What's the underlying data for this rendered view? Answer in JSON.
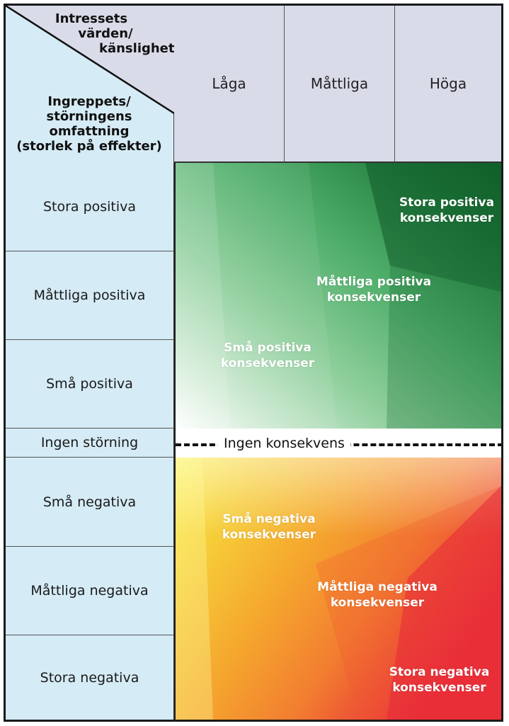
{
  "corner": {
    "top_label": [
      "Intressets",
      "värden/",
      "känslighet"
    ],
    "bottom_label": [
      "Ingreppets/",
      "störningens",
      "omfattning",
      "(storlek på effekter)"
    ]
  },
  "columns": [
    "Låga",
    "Måttliga",
    "Höga"
  ],
  "rows": [
    "Stora positiva",
    "Måttliga positiva",
    "Små positiva",
    "Ingen störning",
    "Små negativa",
    "Måttliga negativa",
    "Stora negativa"
  ],
  "zones": {
    "pos_small": [
      "Små positiva",
      "konsekvenser"
    ],
    "pos_moderate": [
      "Måttliga positiva",
      "konsekvenser"
    ],
    "pos_large": [
      "Stora positiva",
      "konsekvenser"
    ],
    "neutral": "Ingen konsekvens",
    "neg_small": [
      "Små negativa",
      "konsekvenser"
    ],
    "neg_moderate": [
      "Måttliga negativa",
      "konsekvenser"
    ],
    "neg_large": [
      "Stora negativa",
      "konsekvenser"
    ]
  },
  "colors": {
    "row_label_bg": "#d5ebf5",
    "header_bg": "#d9dbe9",
    "positive_dark": "#0f5e2b",
    "positive_light": "#a9d9b0",
    "negative_yellow": "#f6e93a",
    "negative_orange": "#f5962a",
    "negative_red": "#e8283a"
  }
}
